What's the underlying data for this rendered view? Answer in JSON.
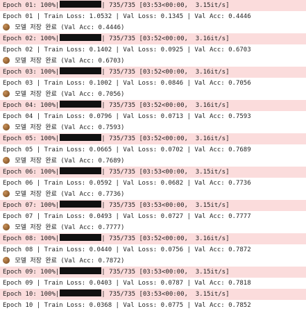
{
  "epochs": [
    {
      "progress": {
        "prefix": "Epoch 01: 100%|",
        "suffix": "| 735/735 [03:53<00:00,  3.15it/s]",
        "fraction": 1.0
      },
      "metrics": "Epoch 01 | Train Loss: 1.0532 | Val Loss: 0.1345 | Val Acc: 0.4446",
      "saved": " 모델 저장 완료 (Val Acc: 0.4446)"
    },
    {
      "progress": {
        "prefix": "Epoch 02: 100%|",
        "suffix": "| 735/735 [03:52<00:00,  3.16it/s]",
        "fraction": 1.0
      },
      "metrics": "Epoch 02 | Train Loss: 0.1402 | Val Loss: 0.0925 | Val Acc: 0.6703",
      "saved": " 모델 저장 완료 (Val Acc: 0.6703)"
    },
    {
      "progress": {
        "prefix": "Epoch 03: 100%|",
        "suffix": "| 735/735 [03:52<00:00,  3.16it/s]",
        "fraction": 1.0
      },
      "metrics": "Epoch 03 | Train Loss: 0.1002 | Val Loss: 0.0846 | Val Acc: 0.7056",
      "saved": " 모델 저장 완료 (Val Acc: 0.7056)"
    },
    {
      "progress": {
        "prefix": "Epoch 04: 100%|",
        "suffix": "| 735/735 [03:52<00:00,  3.16it/s]",
        "fraction": 1.0
      },
      "metrics": "Epoch 04 | Train Loss: 0.0796 | Val Loss: 0.0713 | Val Acc: 0.7593",
      "saved": " 모델 저장 완료 (Val Acc: 0.7593)"
    },
    {
      "progress": {
        "prefix": "Epoch 05: 100%|",
        "suffix": "| 735/735 [03:52<00:00,  3.16it/s]",
        "fraction": 1.0
      },
      "metrics": "Epoch 05 | Train Loss: 0.0665 | Val Loss: 0.0702 | Val Acc: 0.7689",
      "saved": " 모델 저장 완료 (Val Acc: 0.7689)"
    },
    {
      "progress": {
        "prefix": "Epoch 06: 100%|",
        "suffix": "| 735/735 [03:53<00:00,  3.15it/s]",
        "fraction": 1.0
      },
      "metrics": "Epoch 06 | Train Loss: 0.0592 | Val Loss: 0.0682 | Val Acc: 0.7736",
      "saved": " 모델 저장 완료 (Val Acc: 0.7736)"
    },
    {
      "progress": {
        "prefix": "Epoch 07: 100%|",
        "suffix": "| 735/735 [03:53<00:00,  3.15it/s]",
        "fraction": 1.0
      },
      "metrics": "Epoch 07 | Train Loss: 0.0493 | Val Loss: 0.0727 | Val Acc: 0.7777",
      "saved": " 모델 저장 완료 (Val Acc: 0.7777)"
    },
    {
      "progress": {
        "prefix": "Epoch 08: 100%|",
        "suffix": "| 735/735 [03:52<00:00,  3.16it/s]",
        "fraction": 1.0
      },
      "metrics": "Epoch 08 | Train Loss: 0.0440 | Val Loss: 0.0756 | Val Acc: 0.7872",
      "saved": " 모델 저장 완료 (Val Acc: 0.7872)"
    },
    {
      "progress": {
        "prefix": "Epoch 09: 100%|",
        "suffix": "| 735/735 [03:53<00:00,  3.15it/s]",
        "fraction": 1.0
      },
      "metrics": "Epoch 09 | Train Loss: 0.0403 | Val Loss: 0.0787 | Val Acc: 0.7818",
      "saved": null
    },
    {
      "progress": {
        "prefix": "Epoch 10: 100%|",
        "suffix": "| 735/735 [03:53<00:00,  3.15it/s]",
        "fraction": 1.0
      },
      "metrics": "Epoch 10 | Train Loss: 0.0368 | Val Loss: 0.0775 | Val Acc: 0.7852",
      "saved": null
    }
  ],
  "colors": {
    "progress_background": "#fbdcdc",
    "bar_fill": "#111111",
    "text": "#222222"
  },
  "icons": {
    "saved": "disk-icon"
  }
}
